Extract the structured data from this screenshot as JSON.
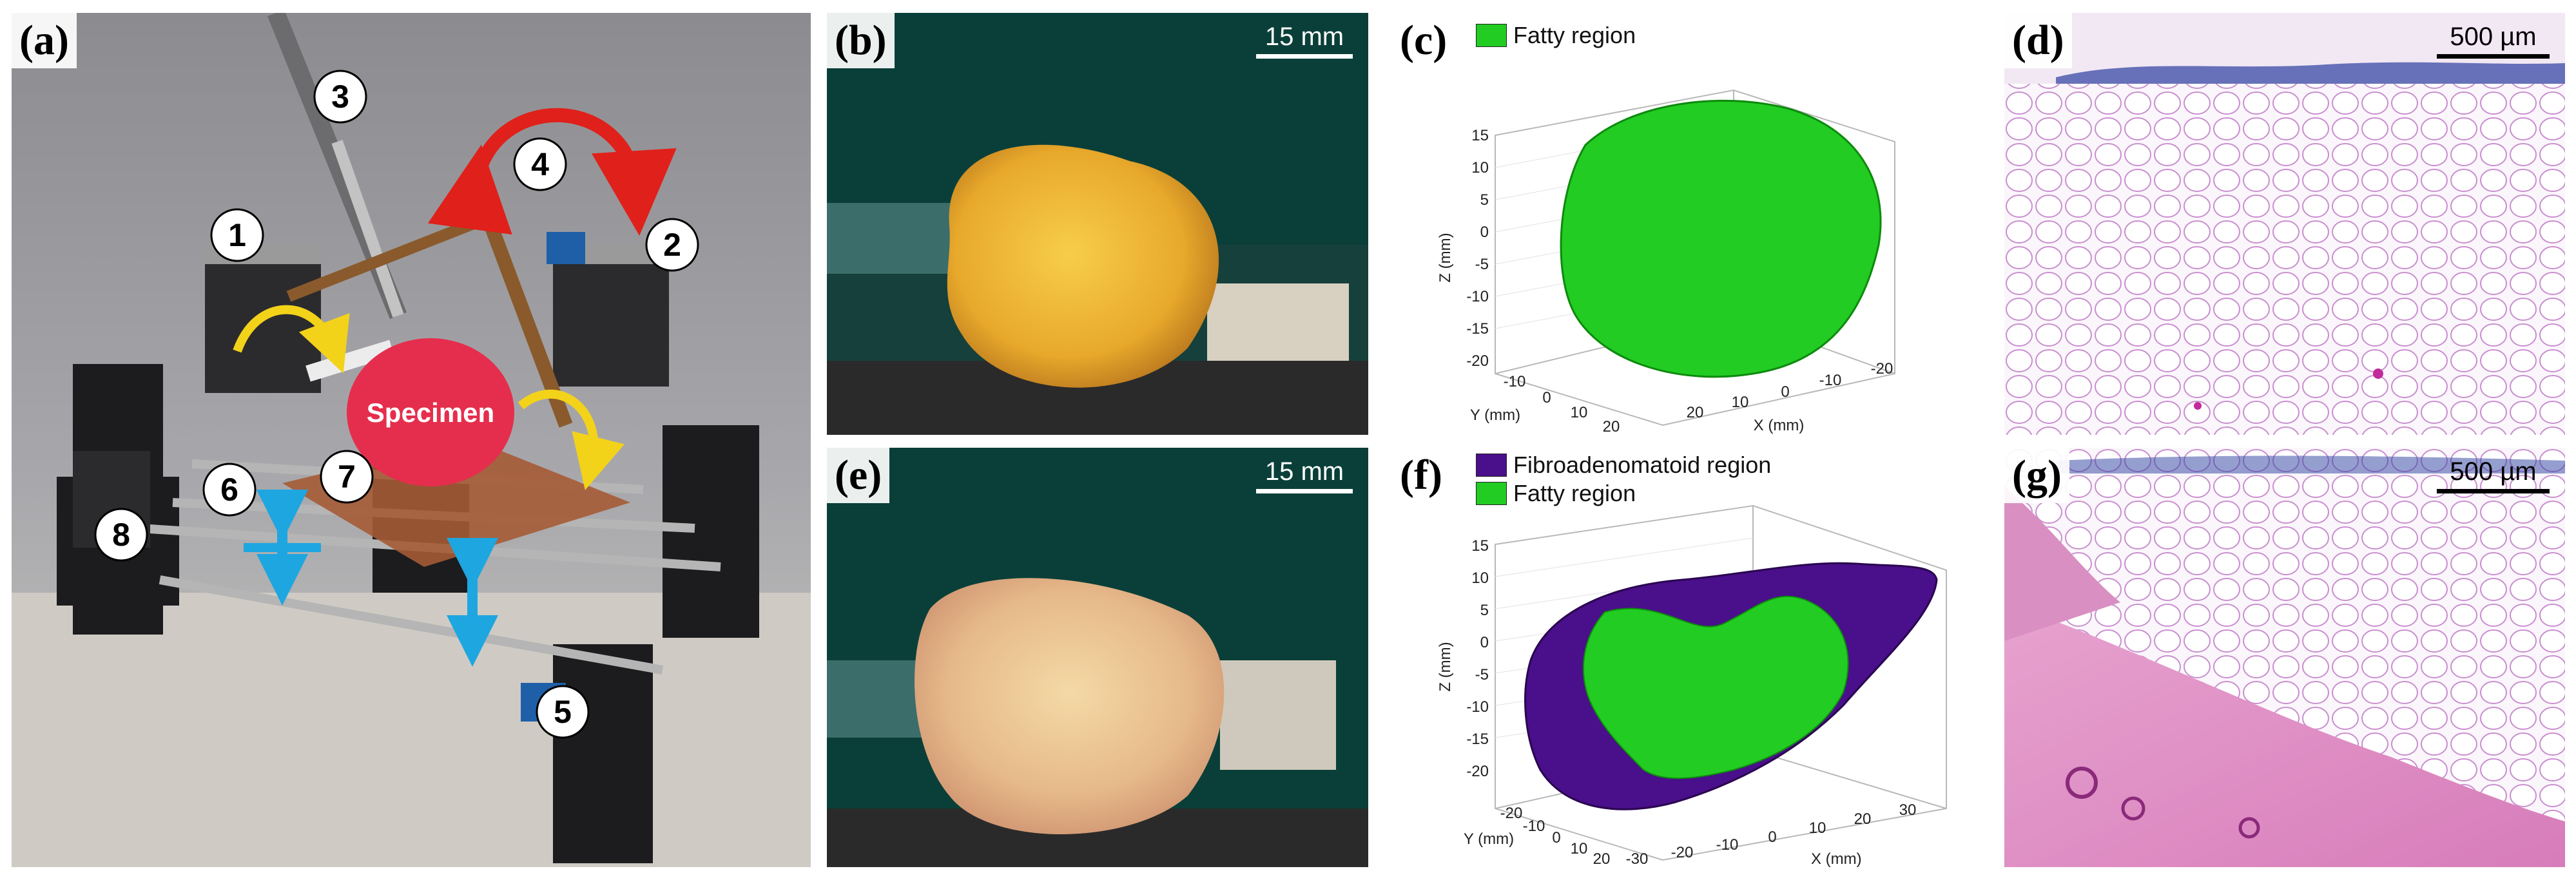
{
  "panels": {
    "a": {
      "label": "(a)",
      "callouts": [
        "1",
        "2",
        "3",
        "4",
        "5",
        "6",
        "7",
        "8"
      ],
      "specimen_label": "Specimen"
    },
    "b": {
      "label": "(b)",
      "scale": "15 mm"
    },
    "c": {
      "label": "(c)",
      "legend": [
        {
          "name": "Fatty region",
          "color": "#22cc22"
        }
      ],
      "axes": {
        "x": "X (mm)",
        "y": "Y (mm)",
        "z": "Z (mm)"
      },
      "z_ticks": [
        "15",
        "10",
        "5",
        "0",
        "-5",
        "-10",
        "-15",
        "-20"
      ],
      "y_ticks": [
        "-10",
        "0",
        "10",
        "20"
      ],
      "x_ticks": [
        "20",
        "10",
        "0",
        "-10",
        "-20"
      ]
    },
    "d": {
      "label": "(d)",
      "scale": "500 µm"
    },
    "e": {
      "label": "(e)",
      "scale": "15 mm"
    },
    "f": {
      "label": "(f)",
      "legend": [
        {
          "name": "Fibroadenomatoid region",
          "color": "#4a0f8a"
        },
        {
          "name": "Fatty region",
          "color": "#22cc22"
        }
      ],
      "axes": {
        "x": "X (mm)",
        "y": "Y (mm)",
        "z": "Z (mm)"
      },
      "z_ticks": [
        "15",
        "10",
        "5",
        "0",
        "-5",
        "-10",
        "-15",
        "-20"
      ],
      "y_ticks": [
        "-20",
        "-10",
        "0",
        "10",
        "20"
      ],
      "x_ticks": [
        "-30",
        "-20",
        "-10",
        "0",
        "10",
        "20",
        "30"
      ]
    },
    "g": {
      "label": "(g)",
      "scale": "500 µm"
    }
  },
  "colors": {
    "fatty": "#22cc22",
    "fibroadenomatoid": "#4a0f8a",
    "rotation_arrow_red": "#e0201a",
    "rotation_arrow_yellow": "#f3d21a",
    "linear_arrow_blue": "#1ea6e0",
    "specimen": "#e52e4d"
  }
}
